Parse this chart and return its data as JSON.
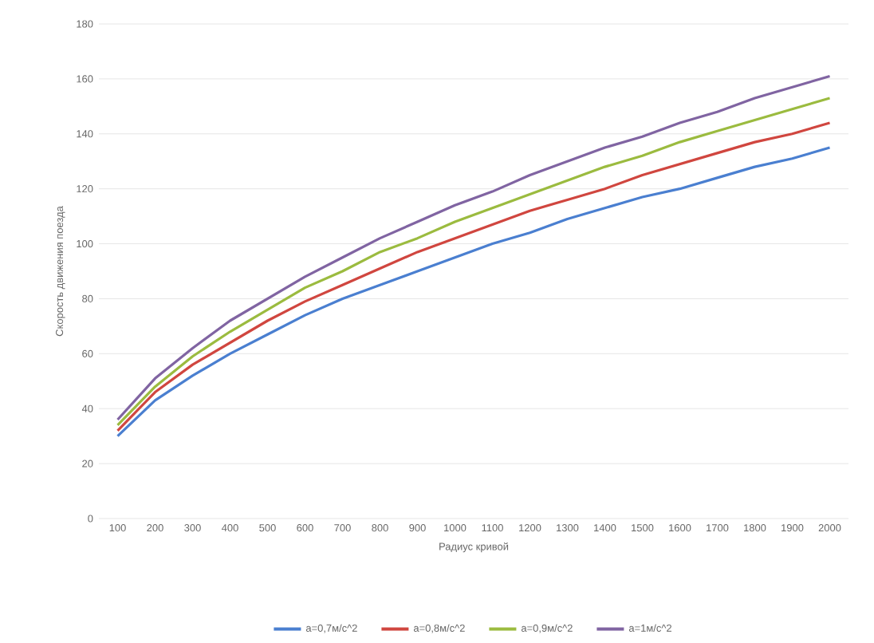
{
  "chart_data": {
    "type": "line",
    "xlabel": "Радиус кривой",
    "ylabel": "Скорость движения поезда",
    "categories": [
      "100",
      "200",
      "300",
      "400",
      "500",
      "600",
      "700",
      "800",
      "900",
      "1000",
      "1100",
      "1200",
      "1300",
      "1400",
      "1500",
      "1600",
      "1700",
      "1800",
      "1900",
      "2000"
    ],
    "series": [
      {
        "name": "a=0,7м/с^2",
        "color": "#4a7fd0",
        "values": [
          30,
          43,
          52,
          60,
          67,
          74,
          80,
          85,
          90,
          95,
          100,
          104,
          109,
          113,
          117,
          120,
          124,
          128,
          131,
          135
        ]
      },
      {
        "name": "a=0,8м/с^2",
        "color": "#d0463f",
        "values": [
          32,
          46,
          56,
          64,
          72,
          79,
          85,
          91,
          97,
          102,
          107,
          112,
          116,
          120,
          125,
          129,
          133,
          137,
          140,
          144
        ]
      },
      {
        "name": "a=0,9м/с^2",
        "color": "#9bbb3f",
        "values": [
          34,
          48,
          59,
          68,
          76,
          84,
          90,
          97,
          102,
          108,
          113,
          118,
          123,
          128,
          132,
          137,
          141,
          145,
          149,
          153
        ]
      },
      {
        "name": "a=1м/с^2",
        "color": "#8064a2",
        "values": [
          36,
          51,
          62,
          72,
          80,
          88,
          95,
          102,
          108,
          114,
          119,
          125,
          130,
          135,
          139,
          144,
          148,
          153,
          157,
          161
        ]
      }
    ],
    "ylim": [
      0,
      180
    ],
    "yticks": [
      0,
      20,
      40,
      60,
      80,
      100,
      120,
      140,
      160,
      180
    ],
    "grid": "y",
    "legend": "bottom",
    "marker": "none",
    "line_style": "solid"
  }
}
